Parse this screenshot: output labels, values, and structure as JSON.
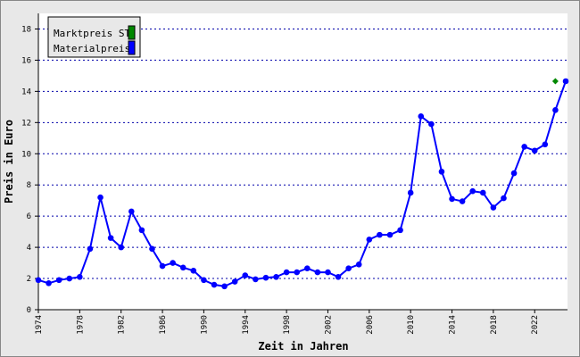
{
  "chart_data": {
    "type": "line",
    "x_label": "Zeit in Jahren",
    "y_label": "Preis in Euro",
    "xlim": [
      1974,
      2025
    ],
    "xticks": [
      1974,
      1978,
      1982,
      1986,
      1990,
      1994,
      1998,
      2002,
      2006,
      2010,
      2014,
      2018,
      2022
    ],
    "ylim": [
      0,
      19
    ],
    "yticks": [
      0,
      2,
      4,
      6,
      8,
      10,
      12,
      14,
      16,
      18
    ],
    "grid": true,
    "legend": "top-left",
    "series": [
      {
        "name": "Marktpreis ST",
        "color": "#008800",
        "marker": "diamond",
        "x": [
          2024
        ],
        "values": [
          14.65
        ]
      },
      {
        "name": "Materialpreis",
        "color": "#0000ff",
        "marker": "circle",
        "x": [
          1974,
          1975,
          1976,
          1977,
          1978,
          1979,
          1980,
          1981,
          1982,
          1983,
          1984,
          1985,
          1986,
          1987,
          1988,
          1989,
          1990,
          1991,
          1992,
          1993,
          1994,
          1995,
          1996,
          1997,
          1998,
          1999,
          2000,
          2001,
          2002,
          2003,
          2004,
          2005,
          2006,
          2007,
          2008,
          2009,
          2010,
          2011,
          2012,
          2013,
          2014,
          2015,
          2016,
          2017,
          2018,
          2019,
          2020,
          2021,
          2022,
          2023,
          2024,
          2025
        ],
        "values": [
          1.9,
          1.7,
          1.9,
          2.0,
          2.1,
          3.9,
          7.2,
          4.6,
          4.0,
          6.3,
          5.1,
          3.9,
          2.8,
          3.0,
          2.7,
          2.5,
          1.9,
          1.6,
          1.5,
          1.8,
          2.2,
          1.95,
          2.05,
          2.1,
          2.4,
          2.4,
          2.65,
          2.4,
          2.4,
          2.1,
          2.65,
          2.9,
          4.5,
          4.8,
          4.8,
          5.1,
          7.5,
          12.4,
          11.9,
          8.85,
          7.1,
          6.95,
          7.6,
          7.5,
          6.55,
          7.15,
          8.75,
          10.45,
          10.2,
          10.6,
          12.8,
          14.65
        ]
      }
    ]
  }
}
